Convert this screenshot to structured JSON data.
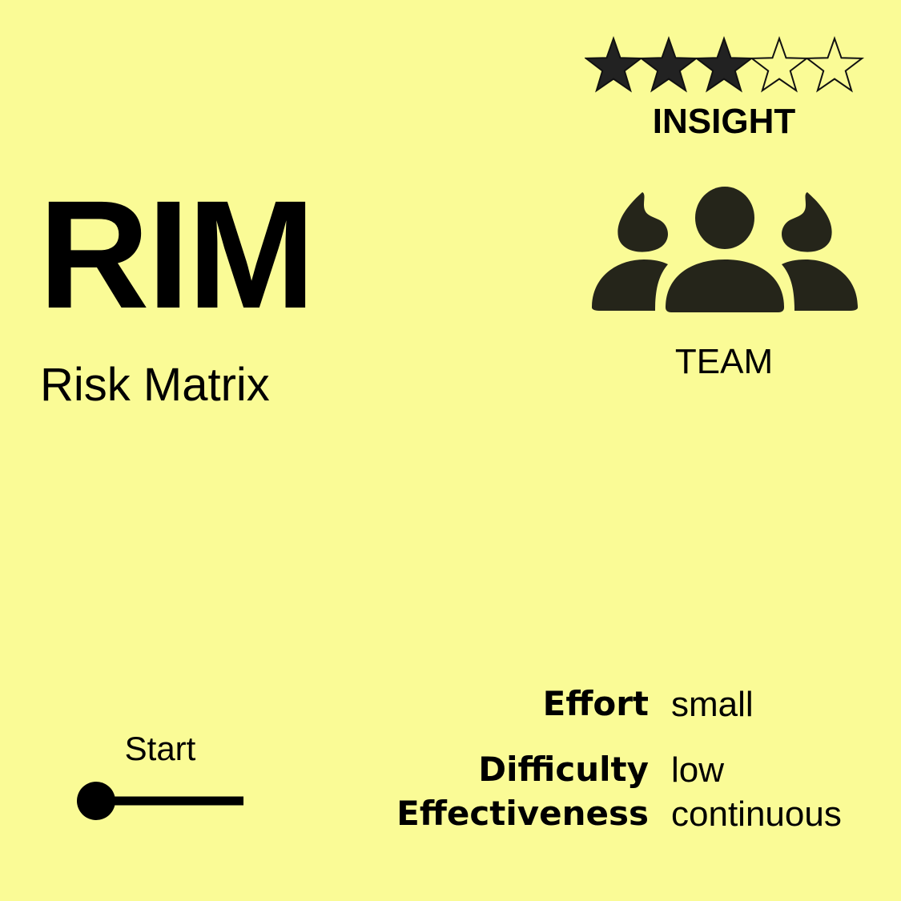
{
  "card": {
    "acronym": "RIM",
    "name": "Risk Matrix",
    "rating": {
      "filled": 3,
      "total": 5
    },
    "category": "INSIGHT",
    "audience": {
      "label": "TEAM",
      "icon": "team-icon"
    },
    "stage": {
      "label": "Start",
      "progress": 0
    },
    "metrics": [
      {
        "label": "Effort",
        "value": "small"
      },
      {
        "label": "Difficulty",
        "value": "low"
      },
      {
        "label": "Effectiveness",
        "value": "continuous"
      }
    ]
  },
  "colors": {
    "background": "#FAFB96",
    "ink": "#000000",
    "icon": "#25251A"
  }
}
